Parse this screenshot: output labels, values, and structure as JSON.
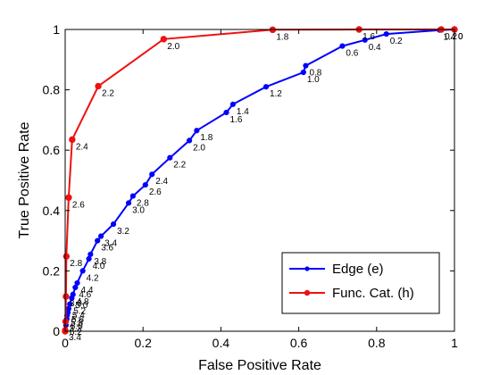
{
  "chart_data": {
    "type": "line",
    "title": "",
    "xlabel": "False Positive Rate",
    "ylabel": "True Positive Rate",
    "xlim": [
      0,
      1
    ],
    "ylim": [
      0,
      1
    ],
    "x_ticks": [
      "0",
      "0.2",
      "0.4",
      "0.6",
      "0.8",
      "1"
    ],
    "y_ticks": [
      "0",
      "0.2",
      "0.4",
      "0.6",
      "0.8",
      "1"
    ],
    "grid": false,
    "legend_position": "bottom-right",
    "series": [
      {
        "name": "Edge (e)",
        "color": "#0000ff",
        "marker": "dot",
        "points": [
          {
            "x": 1.0,
            "y": 1.0,
            "label": "0"
          },
          {
            "x": 0.962,
            "y": 0.998,
            "label": "1.4"
          },
          {
            "x": 0.825,
            "y": 0.985,
            "label": "0.2"
          },
          {
            "x": 0.77,
            "y": 0.965,
            "label": "0.4"
          },
          {
            "x": 0.712,
            "y": 0.945,
            "label": "0.6"
          },
          {
            "x": 0.618,
            "y": 0.88,
            "label": "0.8"
          },
          {
            "x": 0.612,
            "y": 0.858,
            "label": "1.0"
          },
          {
            "x": 0.516,
            "y": 0.81,
            "label": "1.2"
          },
          {
            "x": 0.431,
            "y": 0.752,
            "label": "1.4"
          },
          {
            "x": 0.414,
            "y": 0.725,
            "label": "1.6"
          },
          {
            "x": 0.338,
            "y": 0.665,
            "label": "1.8"
          },
          {
            "x": 0.319,
            "y": 0.632,
            "label": "2.0"
          },
          {
            "x": 0.269,
            "y": 0.575,
            "label": "2.2"
          },
          {
            "x": 0.223,
            "y": 0.52,
            "label": "2.4"
          },
          {
            "x": 0.206,
            "y": 0.485,
            "label": "2.6"
          },
          {
            "x": 0.174,
            "y": 0.448,
            "label": "2.8"
          },
          {
            "x": 0.163,
            "y": 0.425,
            "label": "3.0"
          },
          {
            "x": 0.124,
            "y": 0.355,
            "label": "3.2"
          },
          {
            "x": 0.092,
            "y": 0.315,
            "label": "3.4"
          },
          {
            "x": 0.083,
            "y": 0.3,
            "label": "3.6"
          },
          {
            "x": 0.065,
            "y": 0.255,
            "label": "3.8"
          },
          {
            "x": 0.061,
            "y": 0.24,
            "label": "4.0"
          },
          {
            "x": 0.045,
            "y": 0.2,
            "label": "4.2"
          },
          {
            "x": 0.031,
            "y": 0.16,
            "label": "4.4"
          },
          {
            "x": 0.026,
            "y": 0.145,
            "label": "4.6"
          },
          {
            "x": 0.02,
            "y": 0.122,
            "label": "4.8"
          },
          {
            "x": 0.017,
            "y": 0.11,
            "label": "5.0"
          },
          {
            "x": 0.012,
            "y": 0.09,
            "label": "5.2"
          },
          {
            "x": 0.009,
            "y": 0.075,
            "label": "5.4"
          },
          {
            "x": 0.007,
            "y": 0.062,
            "label": "5.6"
          },
          {
            "x": 0.005,
            "y": 0.052,
            "label": "5.8"
          },
          {
            "x": 0.004,
            "y": 0.04,
            "label": "6.0"
          },
          {
            "x": 0.002,
            "y": 0.02,
            "label": "6.2"
          },
          {
            "x": 0.0,
            "y": 0.0,
            "label": ""
          }
        ]
      },
      {
        "name": "Func. Cat.  (h)",
        "color": "#ee1111",
        "marker": "dot",
        "points": [
          {
            "x": 1.0,
            "y": 1.0,
            "label": "0"
          },
          {
            "x": 0.966,
            "y": 1.0,
            "label": "0.2"
          },
          {
            "x": 0.755,
            "y": 1.0,
            "label": "1.6"
          },
          {
            "x": 0.533,
            "y": 0.999,
            "label": "1.8"
          },
          {
            "x": 0.253,
            "y": 0.968,
            "label": "2.0"
          },
          {
            "x": 0.085,
            "y": 0.812,
            "label": "2.2"
          },
          {
            "x": 0.018,
            "y": 0.635,
            "label": "2.4"
          },
          {
            "x": 0.009,
            "y": 0.443,
            "label": "2.6"
          },
          {
            "x": 0.003,
            "y": 0.248,
            "label": "2.8"
          },
          {
            "x": 0.002,
            "y": 0.115,
            "label": "3.0"
          },
          {
            "x": 0.001,
            "y": 0.032,
            "label": "3.2"
          },
          {
            "x": 0.0,
            "y": 0.003,
            "label": "3.4"
          },
          {
            "x": 0.0,
            "y": 0.0,
            "label": ""
          }
        ]
      }
    ]
  }
}
